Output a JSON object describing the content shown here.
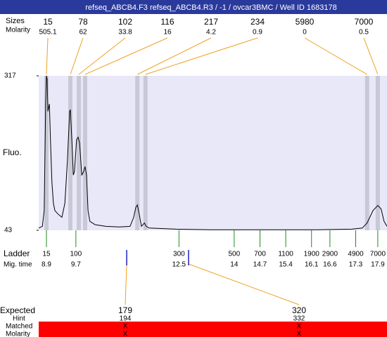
{
  "chart_data": {
    "type": "line",
    "title": "refseq_ABCB4.F3  refseq_ABCB4.R3 / -1 / ovcar3BMC / Well ID 1683178",
    "ylabel": "Fluo.",
    "xlim": [
      8.69,
      18.15
    ],
    "ylim": [
      43,
      317
    ],
    "yticks": [
      43,
      317
    ],
    "color": "#000000",
    "x": [
      8.69,
      8.79,
      8.84,
      8.88,
      8.9,
      8.92,
      8.94,
      8.98,
      9.01,
      9.05,
      9.09,
      9.13,
      9.21,
      9.32,
      9.4,
      9.47,
      9.53,
      9.55,
      9.59,
      9.63,
      9.66,
      9.72,
      9.76,
      9.8,
      9.86,
      9.91,
      9.95,
      9.99,
      10.03,
      10.08,
      10.22,
      10.51,
      10.89,
      11.17,
      11.27,
      11.33,
      11.37,
      11.42,
      11.48,
      11.56,
      11.61,
      11.69,
      12.42,
      13.37,
      15.28,
      16.24,
      17.19,
      17.48,
      17.61,
      17.77,
      17.9,
      17.99,
      18.07,
      18.15
    ],
    "values": [
      47,
      50,
      78,
      267,
      317,
      311,
      254,
      267,
      204,
      128,
      91,
      78,
      72,
      66,
      91,
      166,
      254,
      257,
      204,
      141,
      147,
      204,
      208,
      198,
      141,
      147,
      156,
      141,
      78,
      59,
      53,
      50,
      49,
      50,
      66,
      84,
      88,
      72,
      50,
      56,
      50,
      47,
      45,
      44,
      44,
      44,
      45,
      47,
      56,
      78,
      87,
      81,
      59,
      50
    ],
    "peaks": {
      "size_label": "Sizes",
      "molarity_label": "Molarity",
      "sizes": [
        15,
        78,
        102,
        116,
        217,
        234,
        5980,
        7000
      ],
      "molarity": [
        505.1,
        62,
        33.8,
        16,
        4.2,
        0.9,
        0,
        0.5
      ],
      "times": [
        8.9,
        9.55,
        9.78,
        9.95,
        11.37,
        11.59,
        17.61,
        17.9
      ],
      "color": "#f0a020"
    },
    "ladder": {
      "size_label": "Ladder",
      "time_label": "Mig. time",
      "sizes": [
        15,
        100,
        300,
        500,
        700,
        1100,
        1900,
        2900,
        4900,
        7000
      ],
      "times": [
        8.9,
        9.7,
        12.5,
        14,
        14.7,
        15.4,
        16.1,
        16.6,
        17.3,
        17.9
      ],
      "color": "#208a20"
    },
    "expected": {
      "size_label": "Expected",
      "hint_label": "Hint",
      "matched_label": "Matched",
      "molarity_label": "Molarity",
      "sizes": [
        179,
        320
      ],
      "hints": [
        194,
        332
      ],
      "matched": [
        "X",
        "X"
      ],
      "molarity": [
        "X",
        "X"
      ],
      "times": [
        11.08,
        12.76
      ],
      "color": "#2020c0"
    }
  }
}
